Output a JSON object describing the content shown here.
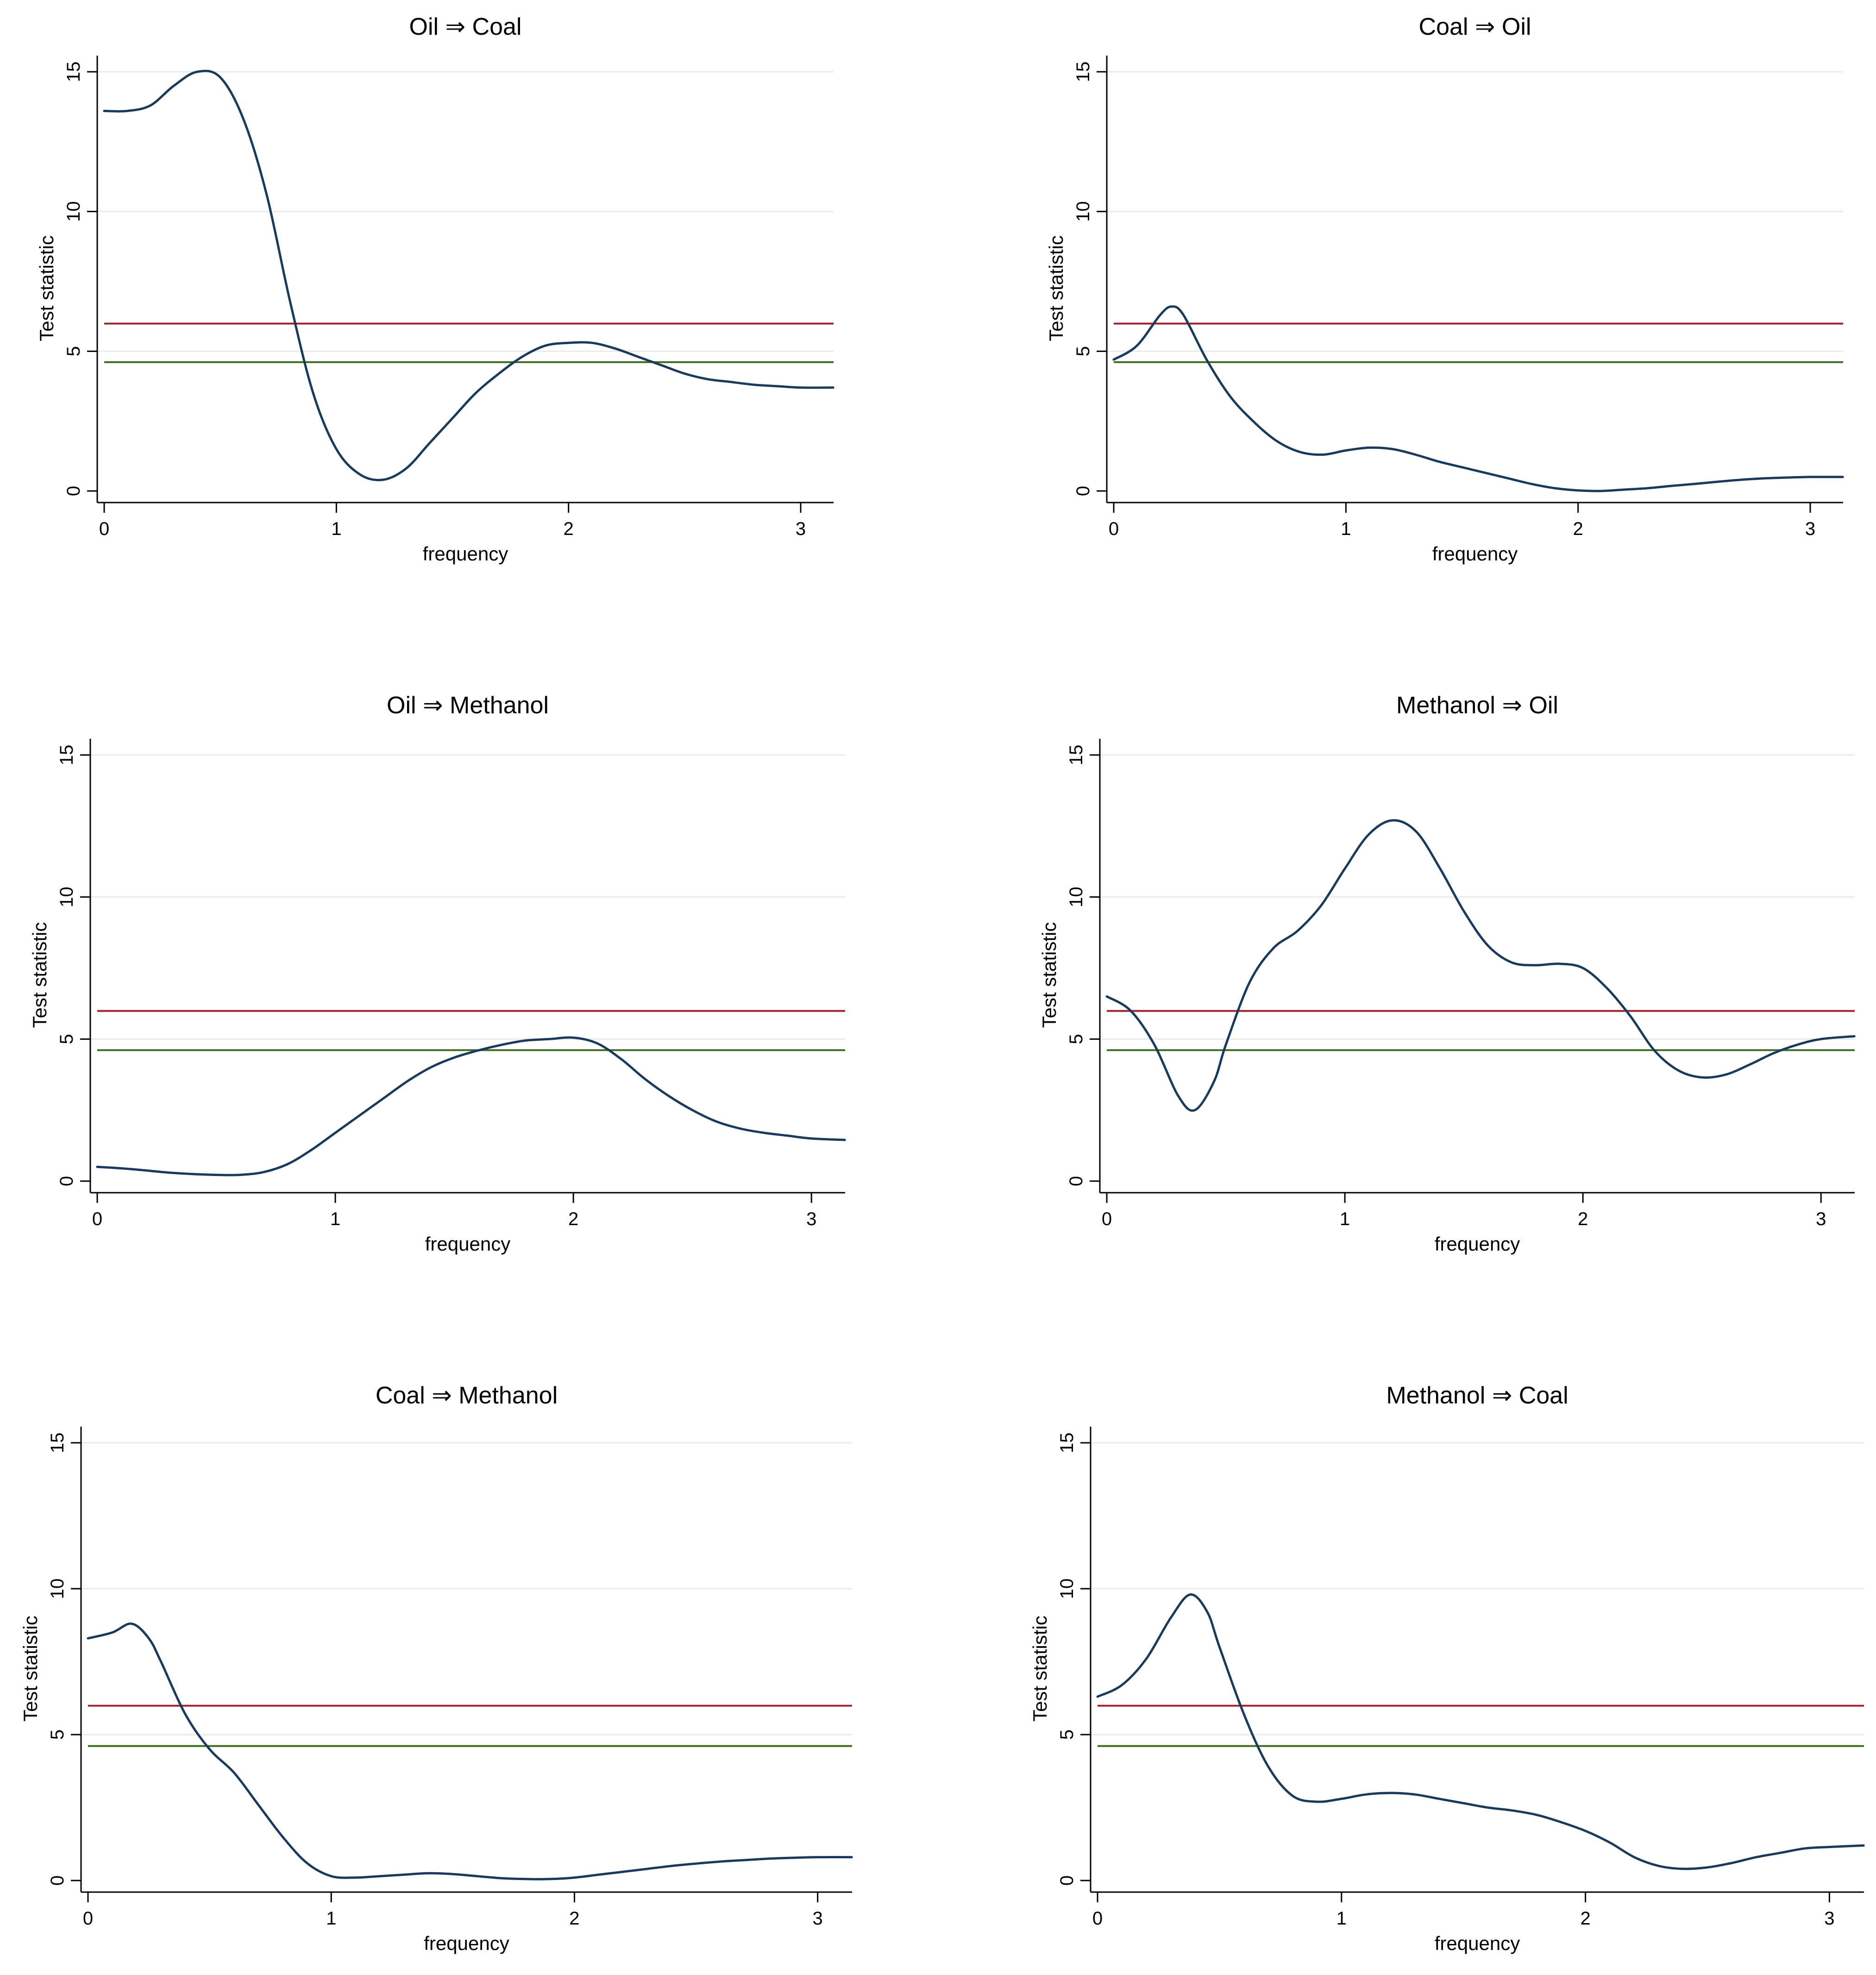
{
  "figure": {
    "theme": {
      "series_color": "#1a3a5c",
      "crit_high_color": "#a0202a",
      "crit_low_color": "#3e6b1c",
      "grid_color": "#e7ecee"
    }
  },
  "chart_data": [
    {
      "type": "line",
      "title": "Oil ⇒ Coal",
      "xlabel": "frequency",
      "ylabel": "Test statistic",
      "xlim": [
        0,
        3.14159
      ],
      "ylim": [
        0,
        15
      ],
      "xticks": [
        0,
        1,
        2,
        3
      ],
      "yticks": [
        0,
        5,
        10,
        15
      ],
      "grid": true,
      "series": [
        {
          "name": "test statistic",
          "x": [
            0,
            0.1,
            0.2,
            0.3,
            0.4,
            0.5,
            0.6,
            0.7,
            0.8,
            0.9,
            1.0,
            1.1,
            1.2,
            1.3,
            1.4,
            1.5,
            1.6,
            1.7,
            1.8,
            1.9,
            2.0,
            2.1,
            2.2,
            2.3,
            2.4,
            2.5,
            2.6,
            2.7,
            2.8,
            2.9,
            3.0,
            3.14
          ],
          "values": [
            13.6,
            13.6,
            13.8,
            14.5,
            15.0,
            14.8,
            13.3,
            10.6,
            6.8,
            3.5,
            1.5,
            0.6,
            0.4,
            0.8,
            1.7,
            2.6,
            3.5,
            4.2,
            4.8,
            5.2,
            5.3,
            5.3,
            5.1,
            4.8,
            4.5,
            4.2,
            4.0,
            3.9,
            3.8,
            3.75,
            3.7,
            3.7
          ]
        }
      ],
      "ref_lines": [
        {
          "name": "crit-high",
          "y": 5.99
        },
        {
          "name": "crit-low",
          "y": 4.61
        }
      ]
    },
    {
      "type": "line",
      "title": "Coal ⇒ Oil",
      "xlabel": "frequency",
      "ylabel": "Test statistic",
      "xlim": [
        0,
        3.14159
      ],
      "ylim": [
        0,
        15
      ],
      "xticks": [
        0,
        1,
        2,
        3
      ],
      "yticks": [
        0,
        5,
        10,
        15
      ],
      "grid": true,
      "series": [
        {
          "name": "test statistic",
          "x": [
            0,
            0.1,
            0.2,
            0.25,
            0.3,
            0.4,
            0.5,
            0.6,
            0.7,
            0.8,
            0.9,
            1.0,
            1.1,
            1.2,
            1.3,
            1.4,
            1.5,
            1.6,
            1.7,
            1.8,
            1.9,
            2.0,
            2.1,
            2.2,
            2.3,
            2.4,
            2.5,
            2.6,
            2.7,
            2.8,
            2.9,
            3.0,
            3.14
          ],
          "values": [
            4.7,
            5.2,
            6.3,
            6.6,
            6.3,
            4.7,
            3.4,
            2.5,
            1.8,
            1.4,
            1.3,
            1.45,
            1.55,
            1.5,
            1.3,
            1.05,
            0.85,
            0.65,
            0.45,
            0.25,
            0.1,
            0.02,
            0.0,
            0.05,
            0.1,
            0.18,
            0.25,
            0.33,
            0.4,
            0.45,
            0.48,
            0.5,
            0.5
          ]
        }
      ],
      "ref_lines": [
        {
          "name": "crit-high",
          "y": 5.99
        },
        {
          "name": "crit-low",
          "y": 4.61
        }
      ]
    },
    {
      "type": "line",
      "title": "Oil ⇒ Methanol",
      "xlabel": "frequency",
      "ylabel": "Test statistic",
      "xlim": [
        0,
        3.14159
      ],
      "ylim": [
        0,
        15
      ],
      "xticks": [
        0,
        1,
        2,
        3
      ],
      "yticks": [
        0,
        5,
        10,
        15
      ],
      "grid": true,
      "series": [
        {
          "name": "test statistic",
          "x": [
            0,
            0.1,
            0.2,
            0.3,
            0.4,
            0.5,
            0.6,
            0.7,
            0.8,
            0.9,
            1.0,
            1.1,
            1.2,
            1.3,
            1.4,
            1.5,
            1.6,
            1.7,
            1.8,
            1.9,
            2.0,
            2.1,
            2.2,
            2.3,
            2.4,
            2.5,
            2.6,
            2.7,
            2.8,
            2.9,
            3.0,
            3.14
          ],
          "values": [
            0.5,
            0.45,
            0.38,
            0.3,
            0.25,
            0.22,
            0.22,
            0.32,
            0.6,
            1.1,
            1.7,
            2.3,
            2.9,
            3.5,
            4.0,
            4.35,
            4.6,
            4.8,
            4.95,
            5.0,
            5.05,
            4.85,
            4.3,
            3.6,
            3.0,
            2.5,
            2.1,
            1.85,
            1.7,
            1.6,
            1.5,
            1.45
          ]
        }
      ],
      "ref_lines": [
        {
          "name": "crit-high",
          "y": 5.99
        },
        {
          "name": "crit-low",
          "y": 4.61
        }
      ]
    },
    {
      "type": "line",
      "title": "Methanol ⇒ Oil",
      "xlabel": "frequency",
      "ylabel": "Test statistic",
      "xlim": [
        0,
        3.14159
      ],
      "ylim": [
        0,
        15
      ],
      "xticks": [
        0,
        1,
        2,
        3
      ],
      "yticks": [
        0,
        5,
        10,
        15
      ],
      "grid": true,
      "series": [
        {
          "name": "test statistic",
          "x": [
            0,
            0.1,
            0.2,
            0.3,
            0.37,
            0.45,
            0.5,
            0.6,
            0.7,
            0.8,
            0.9,
            1.0,
            1.1,
            1.2,
            1.3,
            1.4,
            1.5,
            1.6,
            1.7,
            1.8,
            1.9,
            2.0,
            2.1,
            2.2,
            2.3,
            2.4,
            2.5,
            2.6,
            2.7,
            2.8,
            2.9,
            3.0,
            3.14
          ],
          "values": [
            6.5,
            6.0,
            4.8,
            3.0,
            2.5,
            3.5,
            4.8,
            7.0,
            8.2,
            8.8,
            9.7,
            11.0,
            12.2,
            12.7,
            12.3,
            11.0,
            9.5,
            8.3,
            7.7,
            7.6,
            7.65,
            7.5,
            6.8,
            5.8,
            4.6,
            3.9,
            3.65,
            3.75,
            4.1,
            4.5,
            4.8,
            5.0,
            5.1
          ]
        }
      ],
      "ref_lines": [
        {
          "name": "crit-high",
          "y": 5.99
        },
        {
          "name": "crit-low",
          "y": 4.61
        }
      ]
    },
    {
      "type": "line",
      "title": "Coal ⇒ Methanol",
      "xlabel": "frequency",
      "ylabel": "Test statistic",
      "xlim": [
        0,
        3.14159
      ],
      "ylim": [
        0,
        15
      ],
      "xticks": [
        0,
        1,
        2,
        3
      ],
      "yticks": [
        0,
        5,
        10,
        15
      ],
      "grid": true,
      "series": [
        {
          "name": "test statistic",
          "x": [
            0,
            0.1,
            0.18,
            0.25,
            0.3,
            0.4,
            0.5,
            0.6,
            0.7,
            0.8,
            0.9,
            1.0,
            1.1,
            1.2,
            1.3,
            1.4,
            1.5,
            1.6,
            1.7,
            1.8,
            1.9,
            2.0,
            2.1,
            2.2,
            2.3,
            2.4,
            2.5,
            2.6,
            2.7,
            2.8,
            2.9,
            3.0,
            3.14
          ],
          "values": [
            8.3,
            8.5,
            8.8,
            8.3,
            7.5,
            5.7,
            4.5,
            3.7,
            2.6,
            1.5,
            0.6,
            0.15,
            0.1,
            0.15,
            0.2,
            0.25,
            0.22,
            0.15,
            0.08,
            0.05,
            0.05,
            0.1,
            0.2,
            0.3,
            0.4,
            0.5,
            0.58,
            0.65,
            0.7,
            0.75,
            0.78,
            0.8,
            0.8
          ]
        }
      ],
      "ref_lines": [
        {
          "name": "crit-high",
          "y": 5.99
        },
        {
          "name": "crit-low",
          "y": 4.61
        }
      ]
    },
    {
      "type": "line",
      "title": "Methanol ⇒ Coal",
      "xlabel": "frequency",
      "ylabel": "Test statistic",
      "xlim": [
        0,
        3.14159
      ],
      "ylim": [
        0,
        15
      ],
      "xticks": [
        0,
        1,
        2,
        3
      ],
      "yticks": [
        0,
        5,
        10,
        15
      ],
      "grid": true,
      "series": [
        {
          "name": "test statistic",
          "x": [
            0,
            0.1,
            0.2,
            0.3,
            0.38,
            0.45,
            0.5,
            0.6,
            0.7,
            0.8,
            0.9,
            1.0,
            1.1,
            1.2,
            1.3,
            1.4,
            1.5,
            1.6,
            1.7,
            1.8,
            1.9,
            2.0,
            2.1,
            2.2,
            2.3,
            2.4,
            2.5,
            2.6,
            2.7,
            2.8,
            2.9,
            3.0,
            3.14
          ],
          "values": [
            6.3,
            6.7,
            7.6,
            9.0,
            9.8,
            9.2,
            8.0,
            5.7,
            3.9,
            2.9,
            2.7,
            2.8,
            2.95,
            3.0,
            2.95,
            2.8,
            2.65,
            2.5,
            2.4,
            2.25,
            2.0,
            1.7,
            1.3,
            0.8,
            0.5,
            0.4,
            0.45,
            0.6,
            0.8,
            0.95,
            1.1,
            1.15,
            1.2
          ]
        }
      ],
      "ref_lines": [
        {
          "name": "crit-high",
          "y": 5.99
        },
        {
          "name": "crit-low",
          "y": 4.61
        }
      ]
    }
  ]
}
